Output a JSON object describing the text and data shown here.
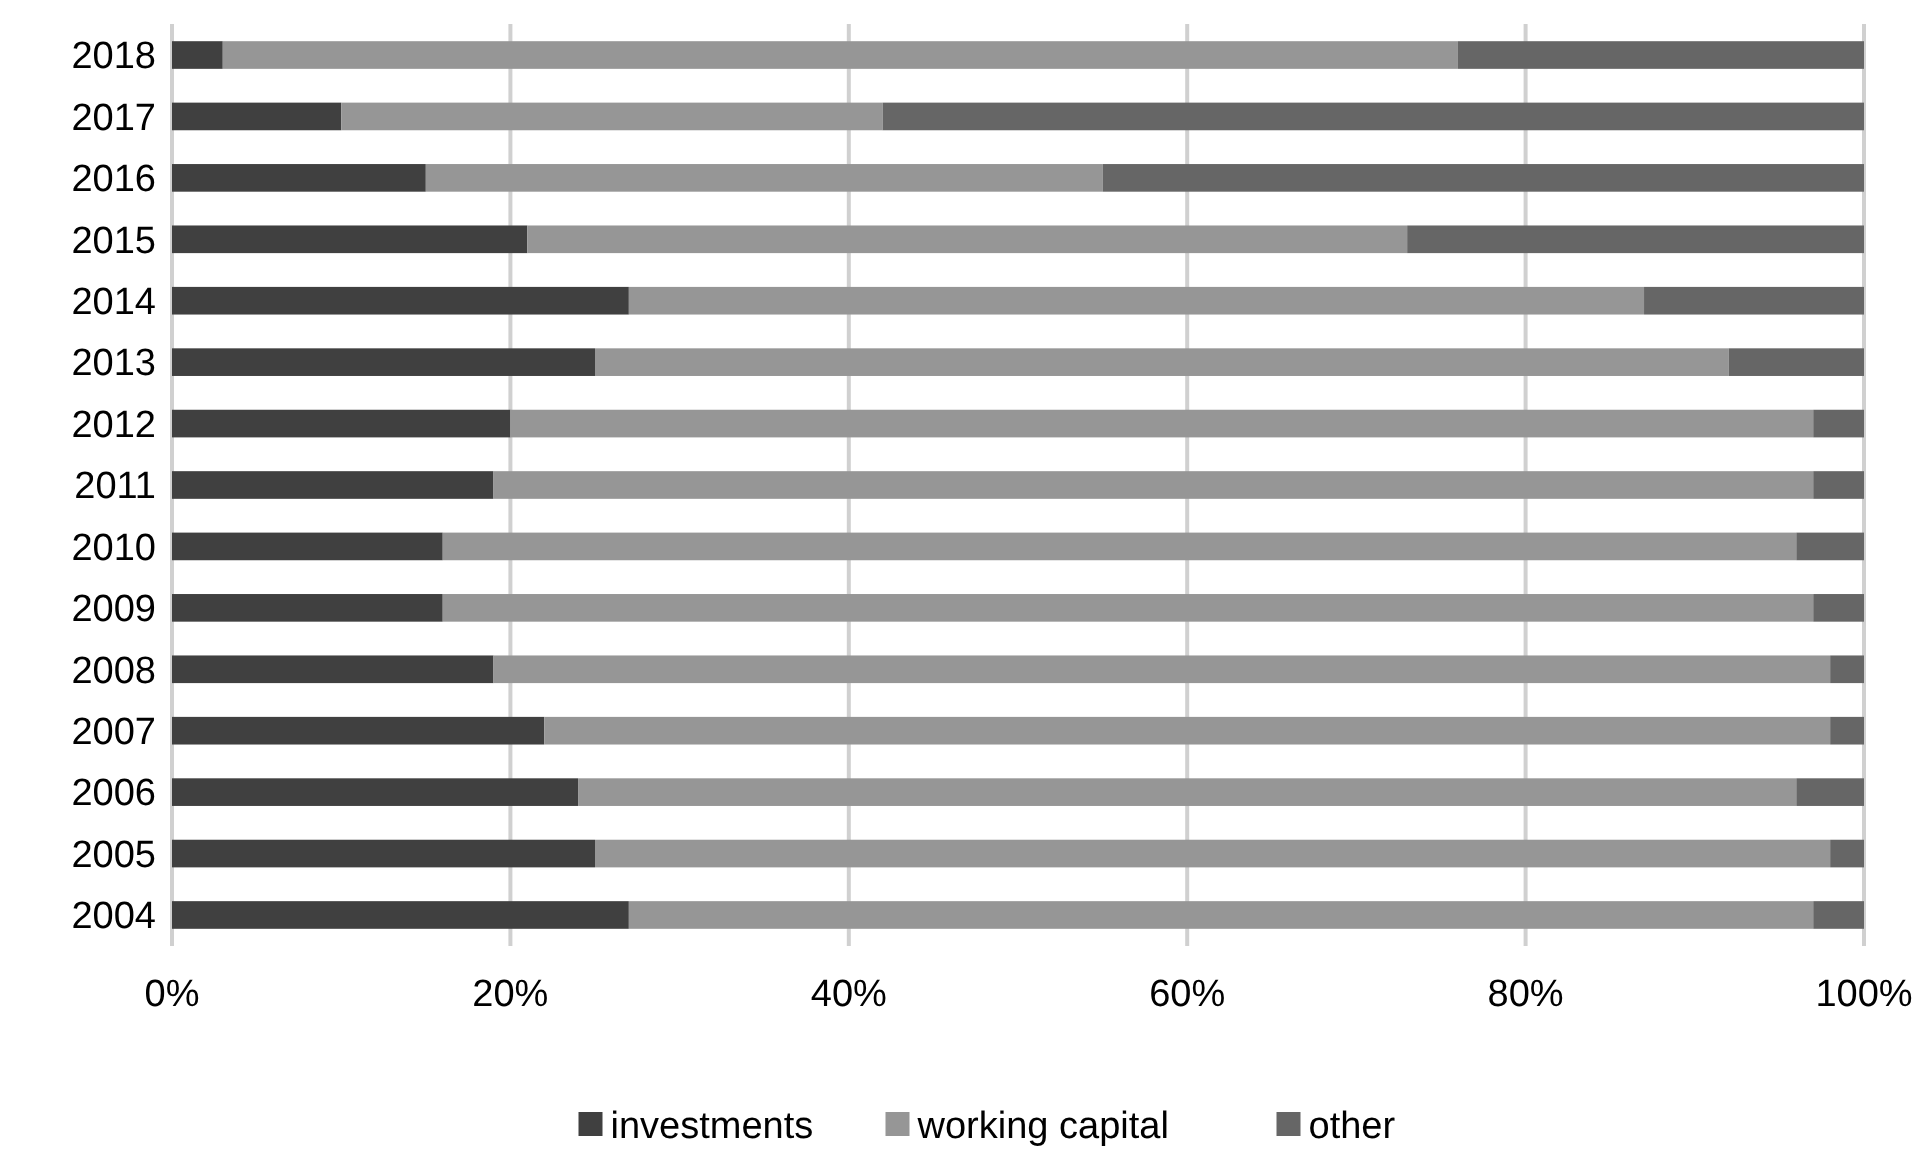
{
  "chart_data": {
    "type": "bar",
    "orientation": "horizontal",
    "stacked": true,
    "categories": [
      "2018",
      "2017",
      "2016",
      "2015",
      "2014",
      "2013",
      "2012",
      "2011",
      "2010",
      "2009",
      "2008",
      "2007",
      "2006",
      "2005",
      "2004"
    ],
    "series": [
      {
        "name": "investments",
        "color": "#404040",
        "values": [
          3,
          10,
          15,
          21,
          27,
          25,
          20,
          19,
          16,
          16,
          19,
          22,
          24,
          25,
          27
        ]
      },
      {
        "name": "working capital",
        "color": "#969696",
        "values": [
          73,
          32,
          40,
          52,
          60,
          67,
          77,
          78,
          80,
          81,
          79,
          76,
          72,
          73,
          70
        ]
      },
      {
        "name": "other",
        "color": "#666666",
        "values": [
          24,
          58,
          45,
          27,
          13,
          8,
          3,
          3,
          4,
          3,
          2,
          2,
          4,
          2,
          3
        ]
      }
    ],
    "xlim": [
      0,
      100
    ],
    "xticks": [
      {
        "value": 0,
        "label": "0%"
      },
      {
        "value": 20,
        "label": "20%"
      },
      {
        "value": 40,
        "label": "40%"
      },
      {
        "value": 60,
        "label": "60%"
      },
      {
        "value": 80,
        "label": "80%"
      },
      {
        "value": 100,
        "label": "100%"
      }
    ],
    "grid": "x",
    "legend": "bottom"
  }
}
